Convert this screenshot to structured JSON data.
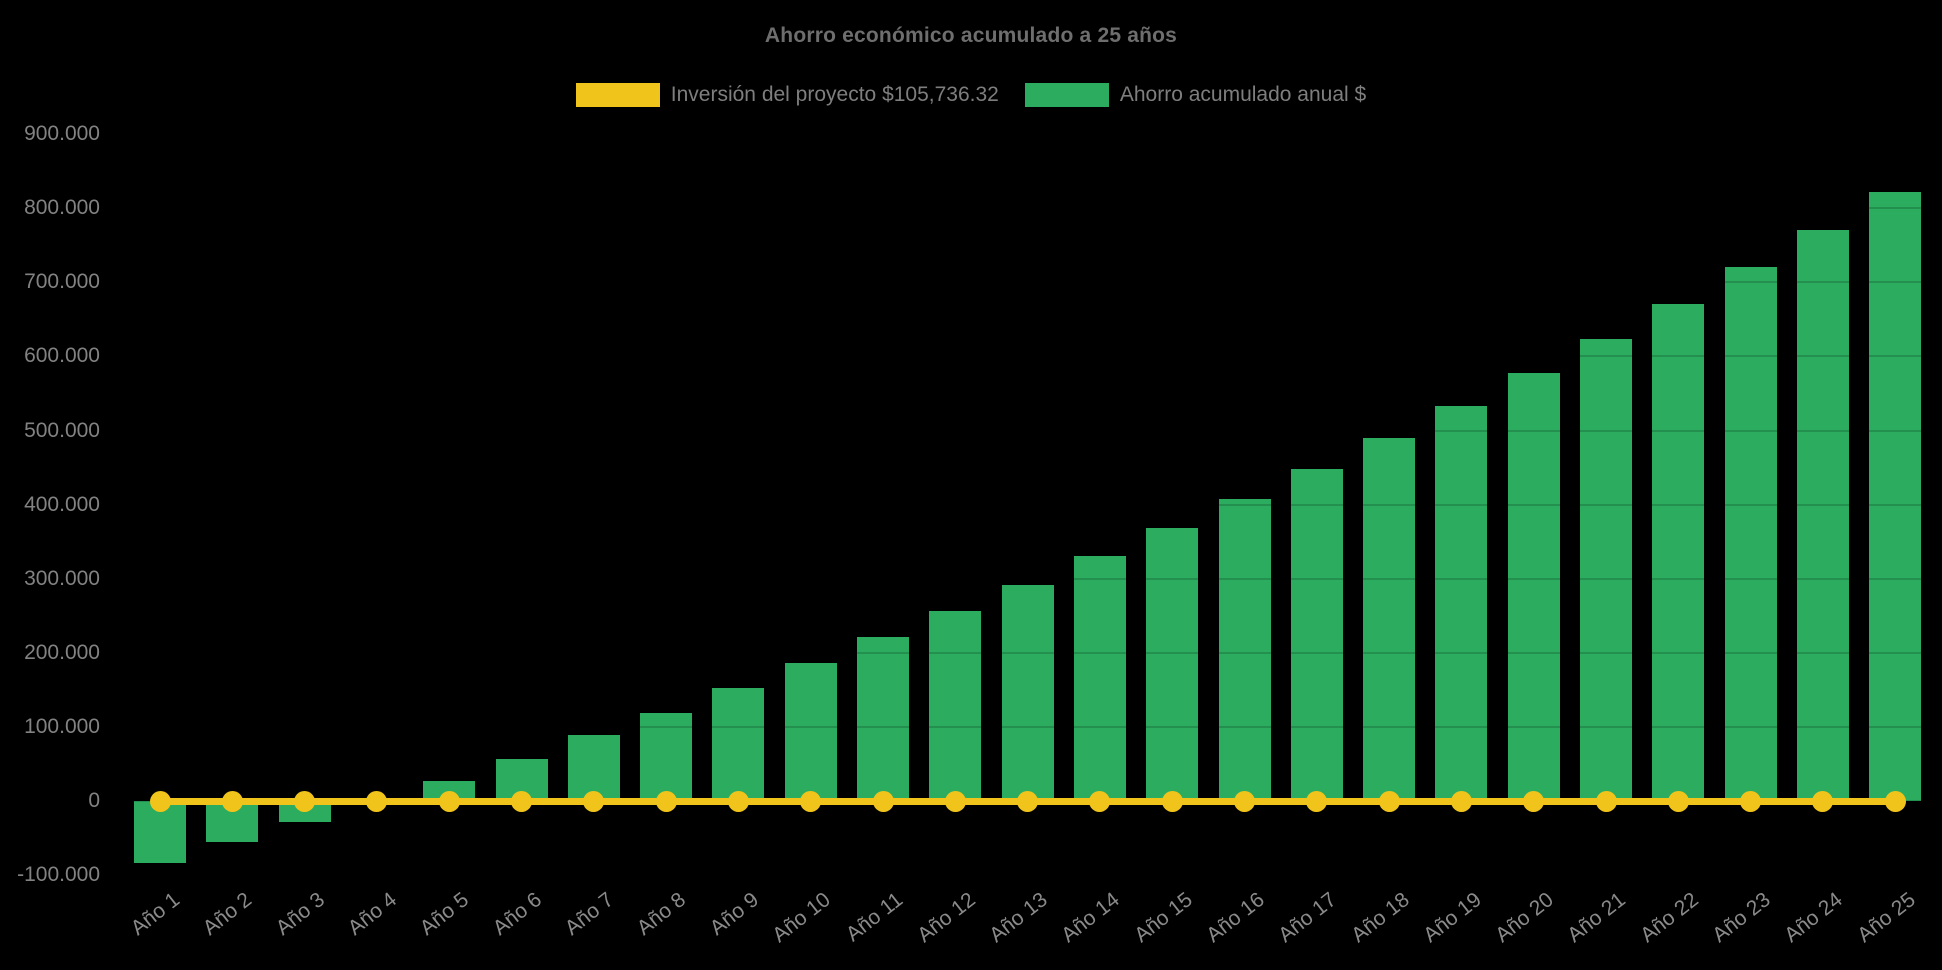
{
  "title": "Ahorro económico acumulado a 25 años",
  "colors": {
    "background": "#000000",
    "bar_green": "#2BAC5F",
    "line_yellow": "#F0C41B",
    "title_text": "#6E6E6E",
    "axis_text": "#828282",
    "legend_text": "#7E7E7E"
  },
  "legend": [
    {
      "label": "Inversión del proyecto $105,736.32",
      "color": "#F0C41B"
    },
    {
      "label": "Ahorro acumulado anual $",
      "color": "#2BAC5F"
    }
  ],
  "chart_data": {
    "type": "bar",
    "title": "Ahorro económico acumulado a 25 años",
    "xlabel": "",
    "ylabel": "",
    "grid": true,
    "legend_position": "top",
    "background": "#000000",
    "ylim": [
      -100000,
      900000
    ],
    "categories": [
      "Año 1",
      "Año 2",
      "Año 3",
      "Año 4",
      "Año 5",
      "Año 6",
      "Año 7",
      "Año 8",
      "Año 9",
      "Año 10",
      "Año 11",
      "Año 12",
      "Año 13",
      "Año 14",
      "Año 15",
      "Año 16",
      "Año 17",
      "Año 18",
      "Año 19",
      "Año 20",
      "Año 21",
      "Año 22",
      "Año 23",
      "Año 24",
      "Año 25"
    ],
    "series": [
      {
        "name": "Inversión del proyecto $105,736.32",
        "type": "line",
        "color": "#F0C41B",
        "investment_amount_shown": 105736.32,
        "values": [
          0,
          0,
          0,
          0,
          0,
          0,
          0,
          0,
          0,
          0,
          0,
          0,
          0,
          0,
          0,
          0,
          0,
          0,
          0,
          0,
          0,
          0,
          0,
          0,
          0
        ]
      },
      {
        "name": "Ahorro acumulado anual $",
        "type": "bar",
        "color": "#2BAC5F",
        "values": [
          -83000,
          -55000,
          -28000,
          2000,
          27000,
          57000,
          89000,
          119000,
          152000,
          186000,
          221000,
          256000,
          292000,
          330000,
          368000,
          408000,
          448000,
          490000,
          533000,
          577000,
          623000,
          671000,
          721000,
          771000,
          822000
        ]
      }
    ],
    "y_axis": {
      "ticks": [
        {
          "label": "900.000",
          "value": 900000
        },
        {
          "label": "800.000",
          "value": 800000
        },
        {
          "label": "700.000",
          "value": 700000
        },
        {
          "label": "600.000",
          "value": 600000
        },
        {
          "label": "500.000",
          "value": 500000
        },
        {
          "label": "400.000",
          "value": 400000
        },
        {
          "label": "300.000",
          "value": 300000
        },
        {
          "label": "200.000",
          "value": 200000
        },
        {
          "label": "100.000",
          "value": 100000
        },
        {
          "label": "0",
          "value": 0
        },
        {
          "label": "-100.000",
          "value": -100000
        }
      ]
    }
  }
}
